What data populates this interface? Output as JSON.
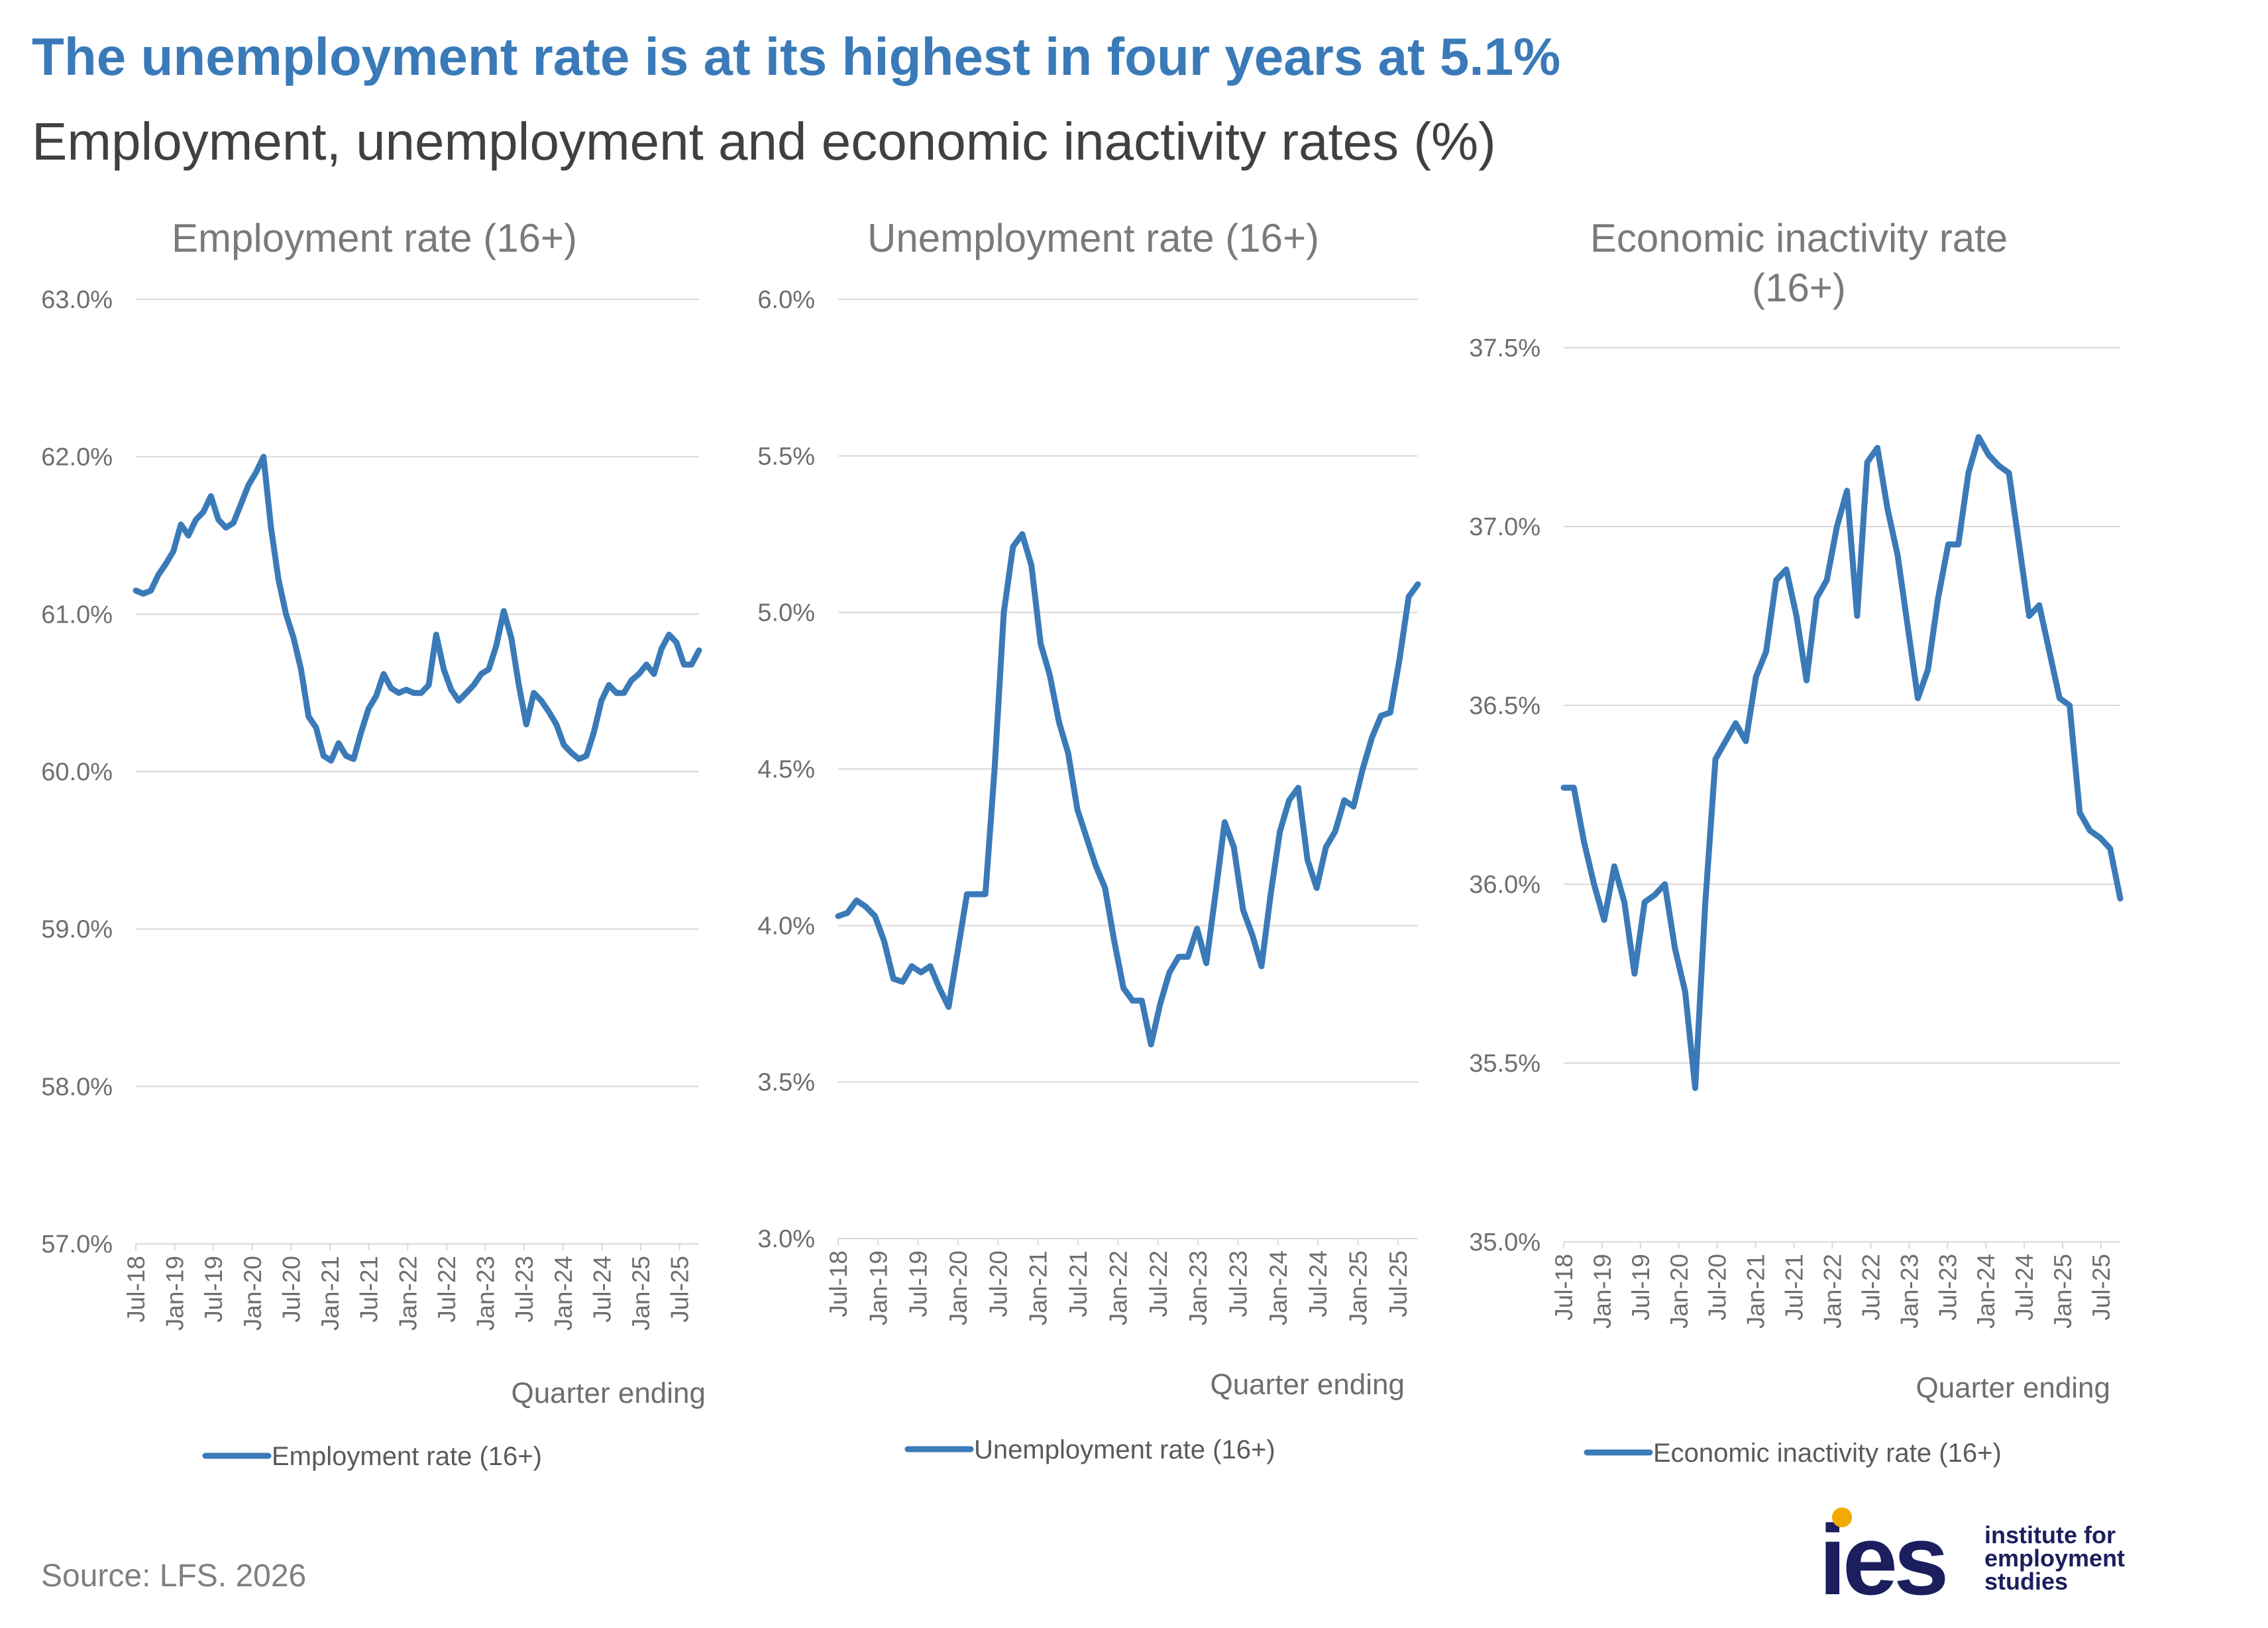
{
  "headline": "The unemployment rate is at its highest in four years at 5.1%",
  "subtitle": "Employment, unemployment and economic inactivity rates (%)",
  "source": "Source: LFS. 2026",
  "logo": {
    "mark": "ies",
    "lines": [
      "institute for",
      "employment",
      "studies"
    ]
  },
  "colors": {
    "series": "#3a7ab8",
    "headline": "#3a7ab8",
    "logo_navy": "#1b1f5e",
    "logo_dot": "#f2a900"
  },
  "chart_data": [
    {
      "type": "line",
      "title": "Employment rate (16+)",
      "xlabel": "Quarter ending",
      "ylabel": "",
      "ylim": [
        57.0,
        63.0
      ],
      "yticks": [
        "57.0%",
        "58.0%",
        "59.0%",
        "60.0%",
        "61.0%",
        "62.0%",
        "63.0%"
      ],
      "x_start": "Jul-18",
      "x_end": "Oct-25",
      "x_tick_labels": [
        "Jul-18",
        "Jan-19",
        "Jul-19",
        "Jan-20",
        "Jul-20",
        "Jan-21",
        "Jul-21",
        "Jan-22",
        "Jul-22",
        "Jan-23",
        "Jul-23",
        "Jan-24",
        "Jul-24",
        "Jan-25",
        "Jul-25"
      ],
      "grid": true,
      "legend": "bottom",
      "series": [
        {
          "name": "Employment rate (16+)",
          "values": [
            61.15,
            61.13,
            61.15,
            61.25,
            61.32,
            61.4,
            61.57,
            61.5,
            61.6,
            61.65,
            61.75,
            61.6,
            61.55,
            61.58,
            61.7,
            61.82,
            61.9,
            62.0,
            61.55,
            61.22,
            61.0,
            60.85,
            60.65,
            60.35,
            60.28,
            60.1,
            60.07,
            60.18,
            60.1,
            60.08,
            60.25,
            60.4,
            60.48,
            60.62,
            60.53,
            60.5,
            60.52,
            60.5,
            60.5,
            60.55,
            60.87,
            60.65,
            60.52,
            60.45,
            60.5,
            60.55,
            60.62,
            60.65,
            60.8,
            61.02,
            60.85,
            60.55,
            60.3,
            60.5,
            60.45,
            60.38,
            60.3,
            60.17,
            60.12,
            60.08,
            60.1,
            60.25,
            60.45,
            60.55,
            60.5,
            60.5,
            60.58,
            60.62,
            60.68,
            60.62,
            60.78,
            60.87,
            60.82,
            60.68,
            60.68,
            60.77
          ]
        }
      ]
    },
    {
      "type": "line",
      "title": "Unemployment rate (16+)",
      "xlabel": "Quarter ending",
      "ylabel": "",
      "ylim": [
        3.0,
        6.0
      ],
      "yticks": [
        "3.0%",
        "3.5%",
        "4.0%",
        "4.5%",
        "5.0%",
        "5.5%",
        "6.0%"
      ],
      "x_start": "Jul-18",
      "x_end": "Oct-25",
      "x_tick_labels": [
        "Jul-18",
        "Jan-19",
        "Jul-19",
        "Jan-20",
        "Jul-20",
        "Jan-21",
        "Jul-21",
        "Jan-22",
        "Jul-22",
        "Jan-23",
        "Jul-23",
        "Jan-24",
        "Jul-24",
        "Jan-25",
        "Jul-25"
      ],
      "grid": true,
      "legend": "bottom",
      "series": [
        {
          "name": "Unemployment rate (16+)",
          "values": [
            4.03,
            4.04,
            4.08,
            4.06,
            4.03,
            3.95,
            3.83,
            3.82,
            3.87,
            3.85,
            3.87,
            3.8,
            3.74,
            3.92,
            4.1,
            4.1,
            4.1,
            4.5,
            5.0,
            5.21,
            5.25,
            5.15,
            4.9,
            4.8,
            4.65,
            4.55,
            4.37,
            4.28,
            4.19,
            4.12,
            3.95,
            3.8,
            3.76,
            3.76,
            3.62,
            3.75,
            3.85,
            3.9,
            3.9,
            3.99,
            3.88,
            4.1,
            4.33,
            4.25,
            4.05,
            3.97,
            3.87,
            4.1,
            4.3,
            4.4,
            4.44,
            4.21,
            4.12,
            4.25,
            4.3,
            4.4,
            4.38,
            4.5,
            4.6,
            4.67,
            4.68,
            4.85,
            5.05,
            5.09
          ]
        }
      ]
    },
    {
      "type": "line",
      "title": "Economic inactivity rate (16+)",
      "xlabel": "Quarter ending",
      "ylabel": "",
      "ylim": [
        35.0,
        37.5
      ],
      "yticks": [
        "35.0%",
        "35.5%",
        "36.0%",
        "36.5%",
        "37.0%",
        "37.5%"
      ],
      "x_start": "Jul-18",
      "x_end": "Oct-25",
      "x_tick_labels": [
        "Jul-18",
        "Jan-19",
        "Jul-19",
        "Jan-20",
        "Jul-20",
        "Jan-21",
        "Jul-21",
        "Jan-22",
        "Jul-22",
        "Jan-23",
        "Jul-23",
        "Jan-24",
        "Jul-24",
        "Jan-25",
        "Jul-25"
      ],
      "grid": true,
      "legend": "bottom",
      "series": [
        {
          "name": "Economic inactivity rate (16+)",
          "values": [
            36.27,
            36.27,
            36.12,
            36.0,
            35.9,
            36.05,
            35.95,
            35.75,
            35.95,
            35.97,
            36.0,
            35.82,
            35.7,
            35.43,
            35.95,
            36.35,
            36.4,
            36.45,
            36.4,
            36.58,
            36.65,
            36.85,
            36.88,
            36.75,
            36.57,
            36.8,
            36.85,
            37.0,
            37.1,
            36.75,
            37.18,
            37.22,
            37.05,
            36.92,
            36.72,
            36.52,
            36.6,
            36.8,
            36.95,
            36.95,
            37.15,
            37.25,
            37.2,
            37.17,
            37.15,
            36.95,
            36.75,
            36.78,
            36.65,
            36.52,
            36.5,
            36.2,
            36.15,
            36.13,
            36.1,
            35.96
          ]
        }
      ]
    }
  ]
}
